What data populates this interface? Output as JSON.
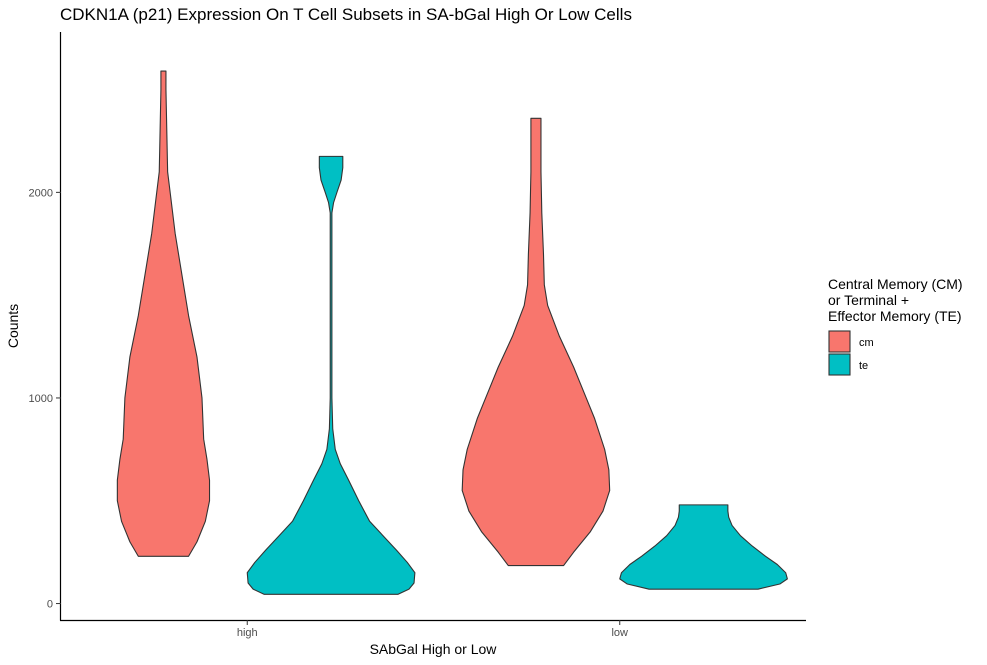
{
  "chart_data": {
    "type": "violin",
    "title": "CDKN1A (p21) Expression On T Cell Subsets in SA-bGal High Or Low Cells",
    "xlabel": "SAbGal High or Low",
    "ylabel": "Counts",
    "categories": [
      "high",
      "low"
    ],
    "y_ticks": [
      0,
      1000,
      2000
    ],
    "y_tick_labels": [
      "0",
      "1000",
      "2000"
    ],
    "ylim": [
      -80,
      2780
    ],
    "grid": false,
    "legend": {
      "title_lines": [
        "Central Memory (CM)",
        " or Terminal +",
        " Effector Memory (TE)"
      ],
      "placement": "right"
    },
    "series": [
      {
        "name": "cm",
        "color": "#F8766D",
        "violins": [
          {
            "category": "high",
            "min": 230,
            "max": 2590,
            "profile": [
              [
                230,
                0.3
              ],
              [
                300,
                0.4
              ],
              [
                400,
                0.5
              ],
              [
                500,
                0.55
              ],
              [
                600,
                0.55
              ],
              [
                700,
                0.52
              ],
              [
                800,
                0.48
              ],
              [
                1000,
                0.46
              ],
              [
                1200,
                0.4
              ],
              [
                1400,
                0.3
              ],
              [
                1600,
                0.22
              ],
              [
                1800,
                0.14
              ],
              [
                2000,
                0.08
              ],
              [
                2100,
                0.05
              ],
              [
                2300,
                0.04
              ],
              [
                2500,
                0.03
              ],
              [
                2590,
                0.03
              ]
            ]
          },
          {
            "category": "low",
            "min": 185,
            "max": 2360,
            "profile": [
              [
                185,
                0.33
              ],
              [
                250,
                0.45
              ],
              [
                350,
                0.65
              ],
              [
                450,
                0.8
              ],
              [
                550,
                0.88
              ],
              [
                650,
                0.87
              ],
              [
                750,
                0.82
              ],
              [
                900,
                0.7
              ],
              [
                1000,
                0.6
              ],
              [
                1150,
                0.45
              ],
              [
                1300,
                0.28
              ],
              [
                1450,
                0.14
              ],
              [
                1550,
                0.1
              ],
              [
                1700,
                0.09
              ],
              [
                1900,
                0.07
              ],
              [
                2100,
                0.06
              ],
              [
                2250,
                0.06
              ],
              [
                2360,
                0.06
              ]
            ]
          }
        ]
      },
      {
        "name": "te",
        "color": "#00BFC4",
        "violins": [
          {
            "category": "high",
            "min": 45,
            "max": 2175,
            "profile": [
              [
                45,
                0.8
              ],
              [
                70,
                0.93
              ],
              [
                100,
                0.99
              ],
              [
                150,
                1.0
              ],
              [
                200,
                0.91
              ],
              [
                260,
                0.78
              ],
              [
                330,
                0.62
              ],
              [
                400,
                0.46
              ],
              [
                500,
                0.33
              ],
              [
                600,
                0.21
              ],
              [
                680,
                0.11
              ],
              [
                750,
                0.05
              ],
              [
                850,
                0.02
              ],
              [
                1000,
                0.01
              ],
              [
                1500,
                0.01
              ],
              [
                1900,
                0.01
              ],
              [
                1950,
                0.03
              ],
              [
                2000,
                0.07
              ],
              [
                2060,
                0.12
              ],
              [
                2120,
                0.14
              ],
              [
                2175,
                0.14
              ]
            ]
          },
          {
            "category": "low",
            "min": 70,
            "max": 480,
            "profile": [
              [
                70,
                0.65
              ],
              [
                95,
                0.91
              ],
              [
                120,
                1.0
              ],
              [
                150,
                0.98
              ],
              [
                190,
                0.88
              ],
              [
                230,
                0.74
              ],
              [
                280,
                0.58
              ],
              [
                330,
                0.44
              ],
              [
                380,
                0.34
              ],
              [
                420,
                0.3
              ],
              [
                450,
                0.29
              ],
              [
                480,
                0.29
              ]
            ]
          }
        ]
      }
    ]
  }
}
